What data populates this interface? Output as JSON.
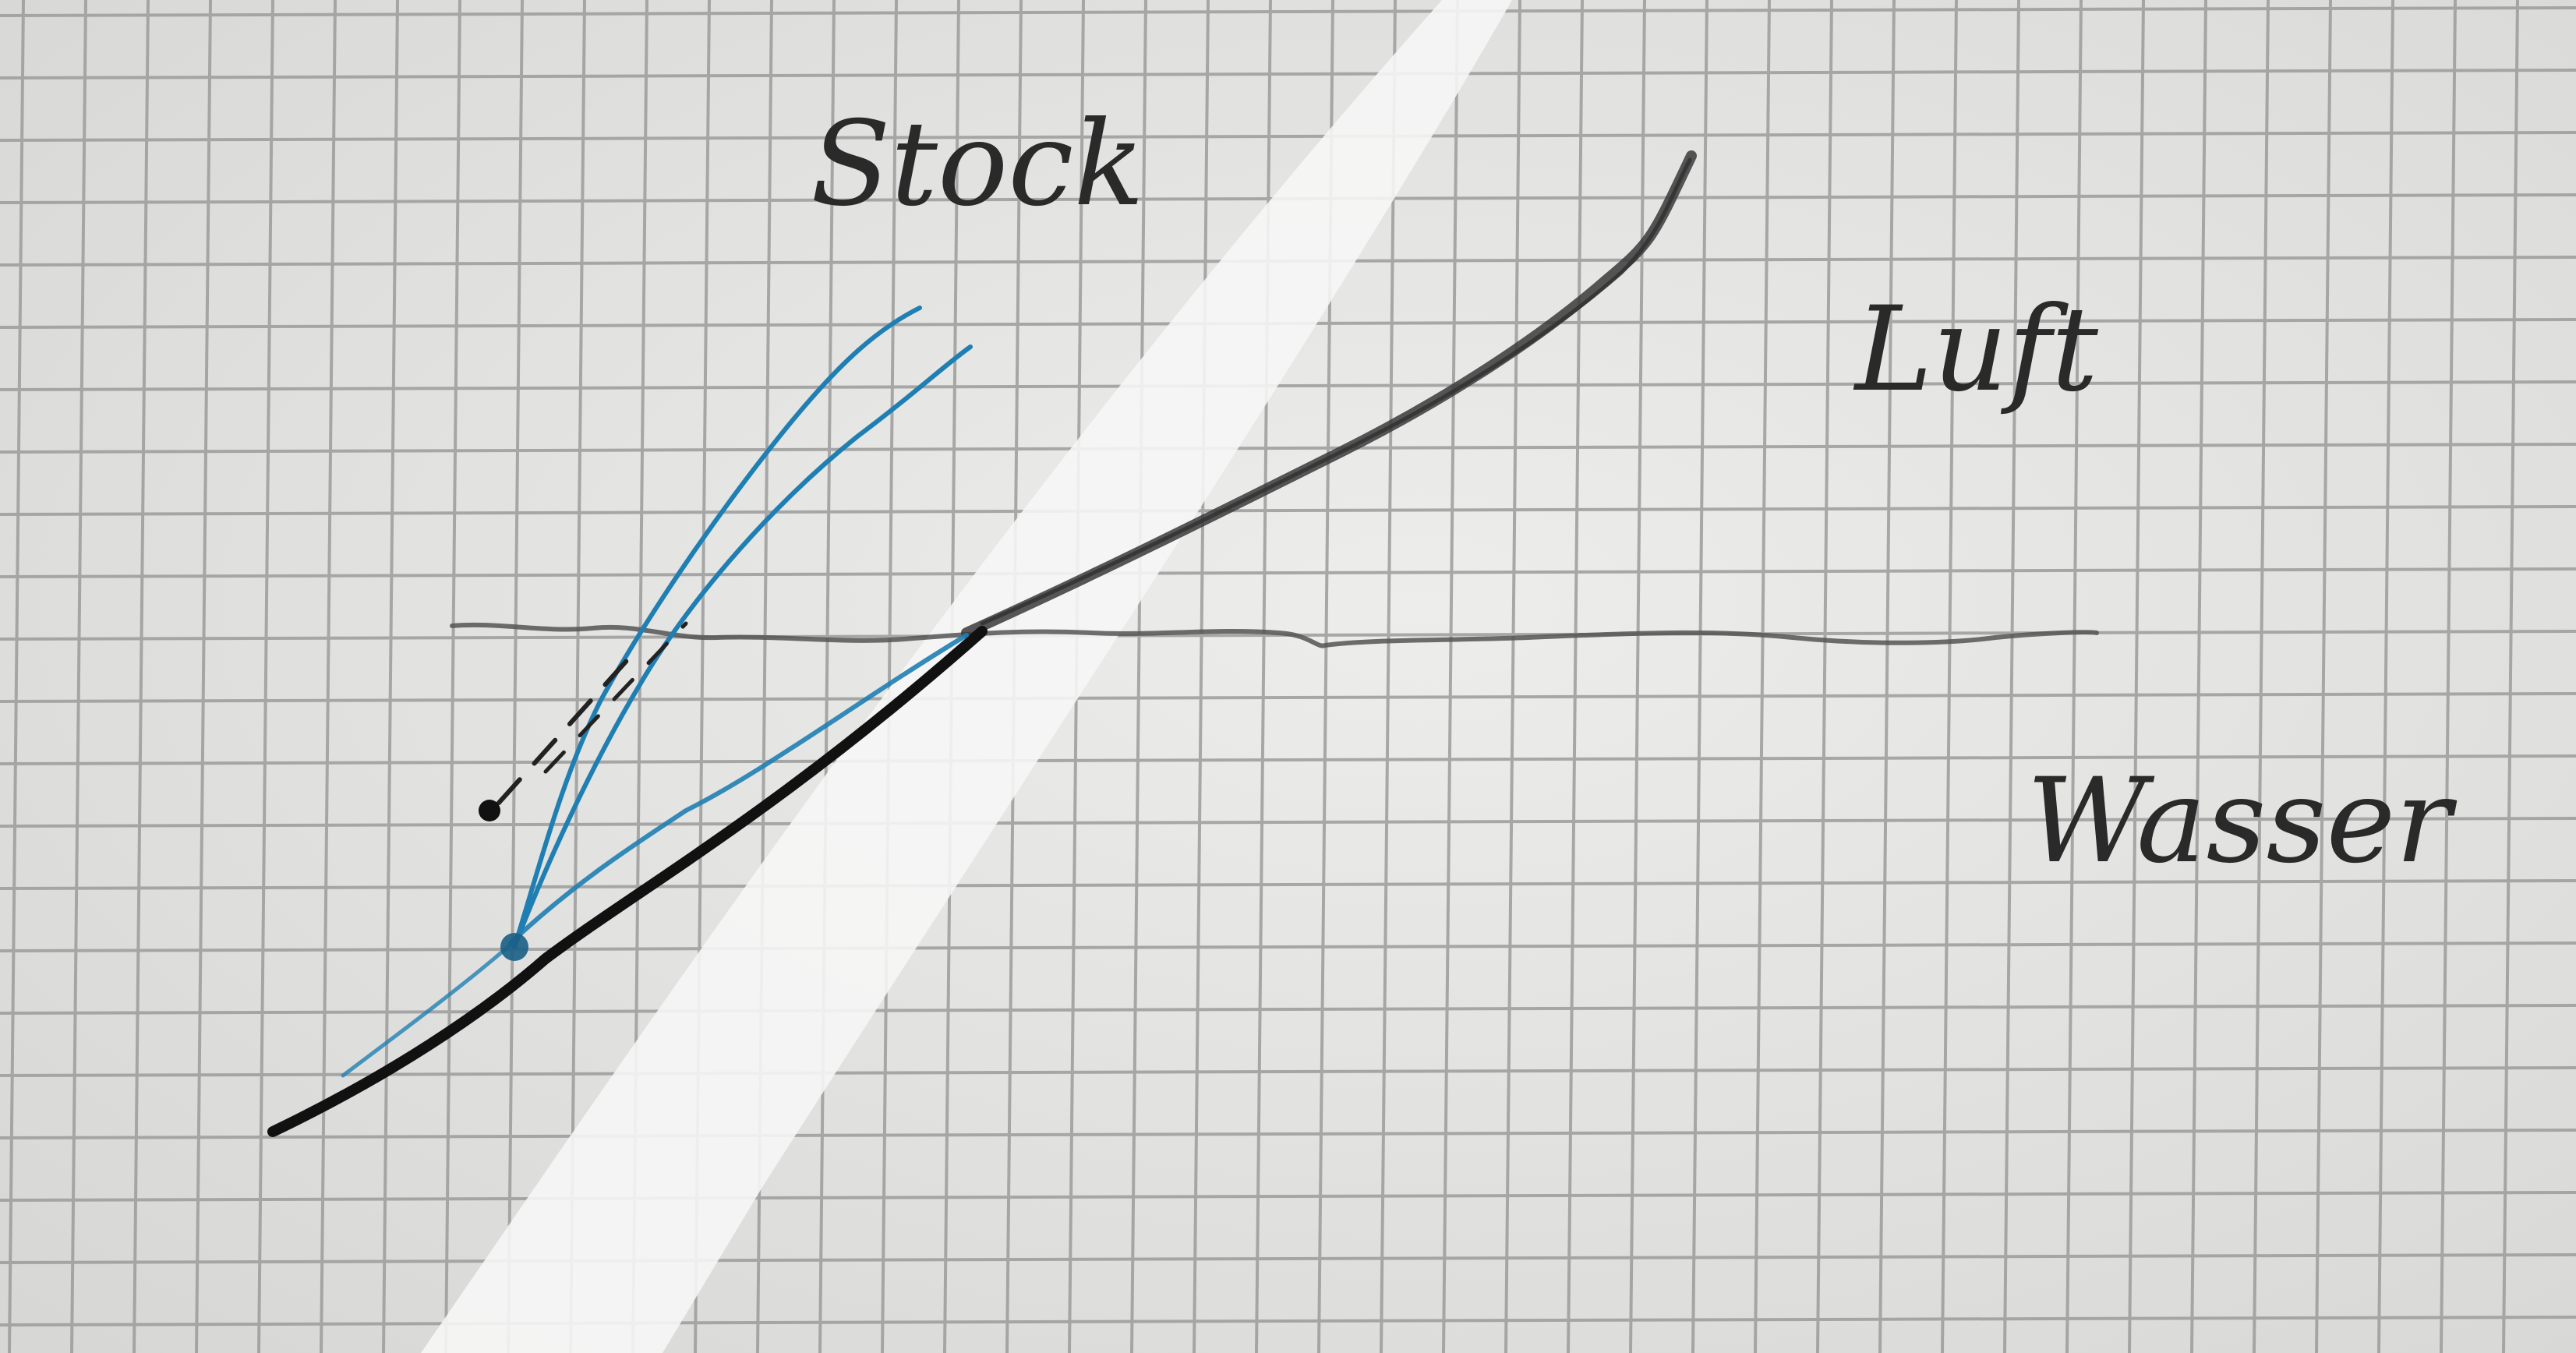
{
  "labels": {
    "stick": "Stock",
    "air": "Luft",
    "water": "Wasser"
  },
  "colors": {
    "paper": "#e4e4e2",
    "grid": "#9c9c9c",
    "pencil": "#3a3a3a",
    "ink": "#111111",
    "blue_ink": "#1f7fb3",
    "white_mark": "#f6f6f6",
    "label_ink": "#2a2a2a"
  }
}
